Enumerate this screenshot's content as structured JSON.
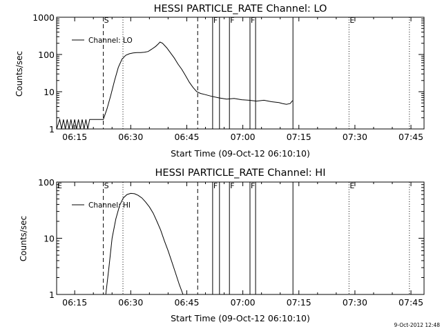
{
  "chart_data": [
    {
      "type": "line",
      "title": "HESSI PARTICLE_RATE Channel: LO",
      "xlabel": "Start Time (09-Oct-12 06:10:10)",
      "ylabel": "Counts/sec",
      "y_scale": "log",
      "ylim": [
        1,
        1000
      ],
      "xlim": [
        "06:10:10",
        "07:48:30"
      ],
      "x_ticks": [
        "06:15",
        "06:30",
        "06:45",
        "07:00",
        "07:15",
        "07:30",
        "07:45"
      ],
      "y_ticks": [
        "1",
        "10",
        "100",
        "1000"
      ],
      "legend": {
        "position": "top-left"
      },
      "markers": [
        {
          "label": "",
          "time": "06:10:10",
          "style": "dashed"
        },
        {
          "label": "S",
          "time": "06:22:40",
          "style": "dashed"
        },
        {
          "label": "",
          "time": "06:27:55",
          "style": "dotted"
        },
        {
          "label": "",
          "time": "06:47:55",
          "style": "dashed"
        },
        {
          "label": "F",
          "time": "06:51:55",
          "style": "solid"
        },
        {
          "label": "",
          "time": "06:53:45",
          "style": "solid"
        },
        {
          "label": "F",
          "time": "06:56:25",
          "style": "solid"
        },
        {
          "label": "F",
          "time": "07:01:55",
          "style": "solid"
        },
        {
          "label": "",
          "time": "07:03:25",
          "style": "solid"
        },
        {
          "label": "",
          "time": "07:13:25",
          "style": "solid"
        },
        {
          "label": "E",
          "time": "07:28:25",
          "style": "dotted"
        },
        {
          "label": "",
          "time": "07:44:35",
          "style": "dotted"
        }
      ],
      "series": [
        {
          "name": "Channel: LO",
          "x": [
            "06:10:10",
            "06:11:00",
            "06:11:30",
            "06:12:00",
            "06:12:30",
            "06:13:00",
            "06:13:30",
            "06:14:00",
            "06:14:30",
            "06:15:00",
            "06:15:30",
            "06:16:00",
            "06:16:30",
            "06:17:00",
            "06:17:30",
            "06:18:00",
            "06:18:30",
            "06:19:00",
            "06:20:00",
            "06:21:00",
            "06:22:00",
            "06:22:40",
            "06:23:40",
            "06:24:40",
            "06:25:40",
            "06:26:40",
            "06:27:40",
            "06:28:40",
            "06:29:40",
            "06:30:40",
            "06:31:40",
            "06:32:40",
            "06:33:40",
            "06:34:40",
            "06:35:40",
            "06:36:40",
            "06:37:20",
            "06:37:50",
            "06:38:30",
            "06:39:40",
            "06:40:40",
            "06:41:40",
            "06:42:40",
            "06:43:40",
            "06:44:40",
            "06:45:40",
            "06:46:40",
            "06:47:40",
            "06:48:40",
            "06:49:40",
            "06:51:40",
            "06:53:40",
            "06:55:40",
            "06:57:40",
            "06:59:40",
            "07:01:40",
            "07:03:40",
            "07:05:40",
            "07:07:40",
            "07:09:40",
            "07:10:40",
            "07:11:40",
            "07:12:40",
            "07:13:20"
          ],
          "y": [
            1,
            1.8,
            1,
            1.8,
            1,
            1.8,
            1,
            1.8,
            1,
            1.8,
            1,
            1.8,
            1,
            1.8,
            1,
            1.8,
            1,
            1.8,
            1.8,
            1.8,
            1.8,
            1.8,
            3.5,
            8,
            20,
            45,
            75,
            95,
            105,
            110,
            112,
            112,
            115,
            120,
            140,
            165,
            190,
            215,
            200,
            150,
            110,
            80,
            55,
            40,
            27,
            18,
            13,
            10,
            9,
            8.5,
            7.5,
            6.8,
            6.3,
            6.6,
            6.1,
            5.9,
            5.6,
            5.9,
            5.4,
            5.1,
            4.8,
            4.6,
            4.8,
            5.8
          ]
        }
      ]
    },
    {
      "type": "line",
      "title": "HESSI PARTICLE_RATE Channel: HI",
      "xlabel": "Start Time (09-Oct-12 06:10:10)",
      "ylabel": "Counts/sec",
      "y_scale": "log",
      "ylim": [
        1,
        100
      ],
      "xlim": [
        "06:10:10",
        "07:48:30"
      ],
      "x_ticks": [
        "06:15",
        "06:30",
        "06:45",
        "07:00",
        "07:15",
        "07:30",
        "07:45"
      ],
      "y_ticks": [
        "1",
        "10",
        "100"
      ],
      "legend": {
        "position": "top-left"
      },
      "markers": [
        {
          "label": "E",
          "time": "06:10:10",
          "style": "dashed"
        },
        {
          "label": "S",
          "time": "06:22:40",
          "style": "dashed"
        },
        {
          "label": "",
          "time": "06:27:55",
          "style": "dotted"
        },
        {
          "label": "",
          "time": "06:47:55",
          "style": "dashed"
        },
        {
          "label": "F",
          "time": "06:51:55",
          "style": "solid"
        },
        {
          "label": "",
          "time": "06:53:45",
          "style": "solid"
        },
        {
          "label": "F",
          "time": "06:56:25",
          "style": "solid"
        },
        {
          "label": "F",
          "time": "07:01:55",
          "style": "solid"
        },
        {
          "label": "",
          "time": "07:03:25",
          "style": "solid"
        },
        {
          "label": "",
          "time": "07:13:25",
          "style": "solid"
        },
        {
          "label": "E",
          "time": "07:28:25",
          "style": "dotted"
        },
        {
          "label": "",
          "time": "07:44:35",
          "style": "dotted"
        }
      ],
      "series": [
        {
          "name": "Channel: HI",
          "x": [
            "06:23:20",
            "06:24:10",
            "06:25:00",
            "06:26:00",
            "06:27:00",
            "06:28:00",
            "06:29:00",
            "06:30:00",
            "06:31:00",
            "06:32:00",
            "06:33:00",
            "06:34:00",
            "06:35:00",
            "06:36:00",
            "06:37:00",
            "06:38:00",
            "06:39:00",
            "06:40:00",
            "06:41:00",
            "06:42:00",
            "06:43:00",
            "06:44:00"
          ],
          "y": [
            1,
            3,
            10,
            22,
            38,
            52,
            60,
            63,
            62,
            58,
            52,
            44,
            36,
            28,
            20,
            14,
            9,
            6,
            3.8,
            2.4,
            1.5,
            1
          ]
        }
      ]
    },
    {
      "type": "table",
      "footer_timestamp": "9-Oct-2012 12:48"
    }
  ]
}
